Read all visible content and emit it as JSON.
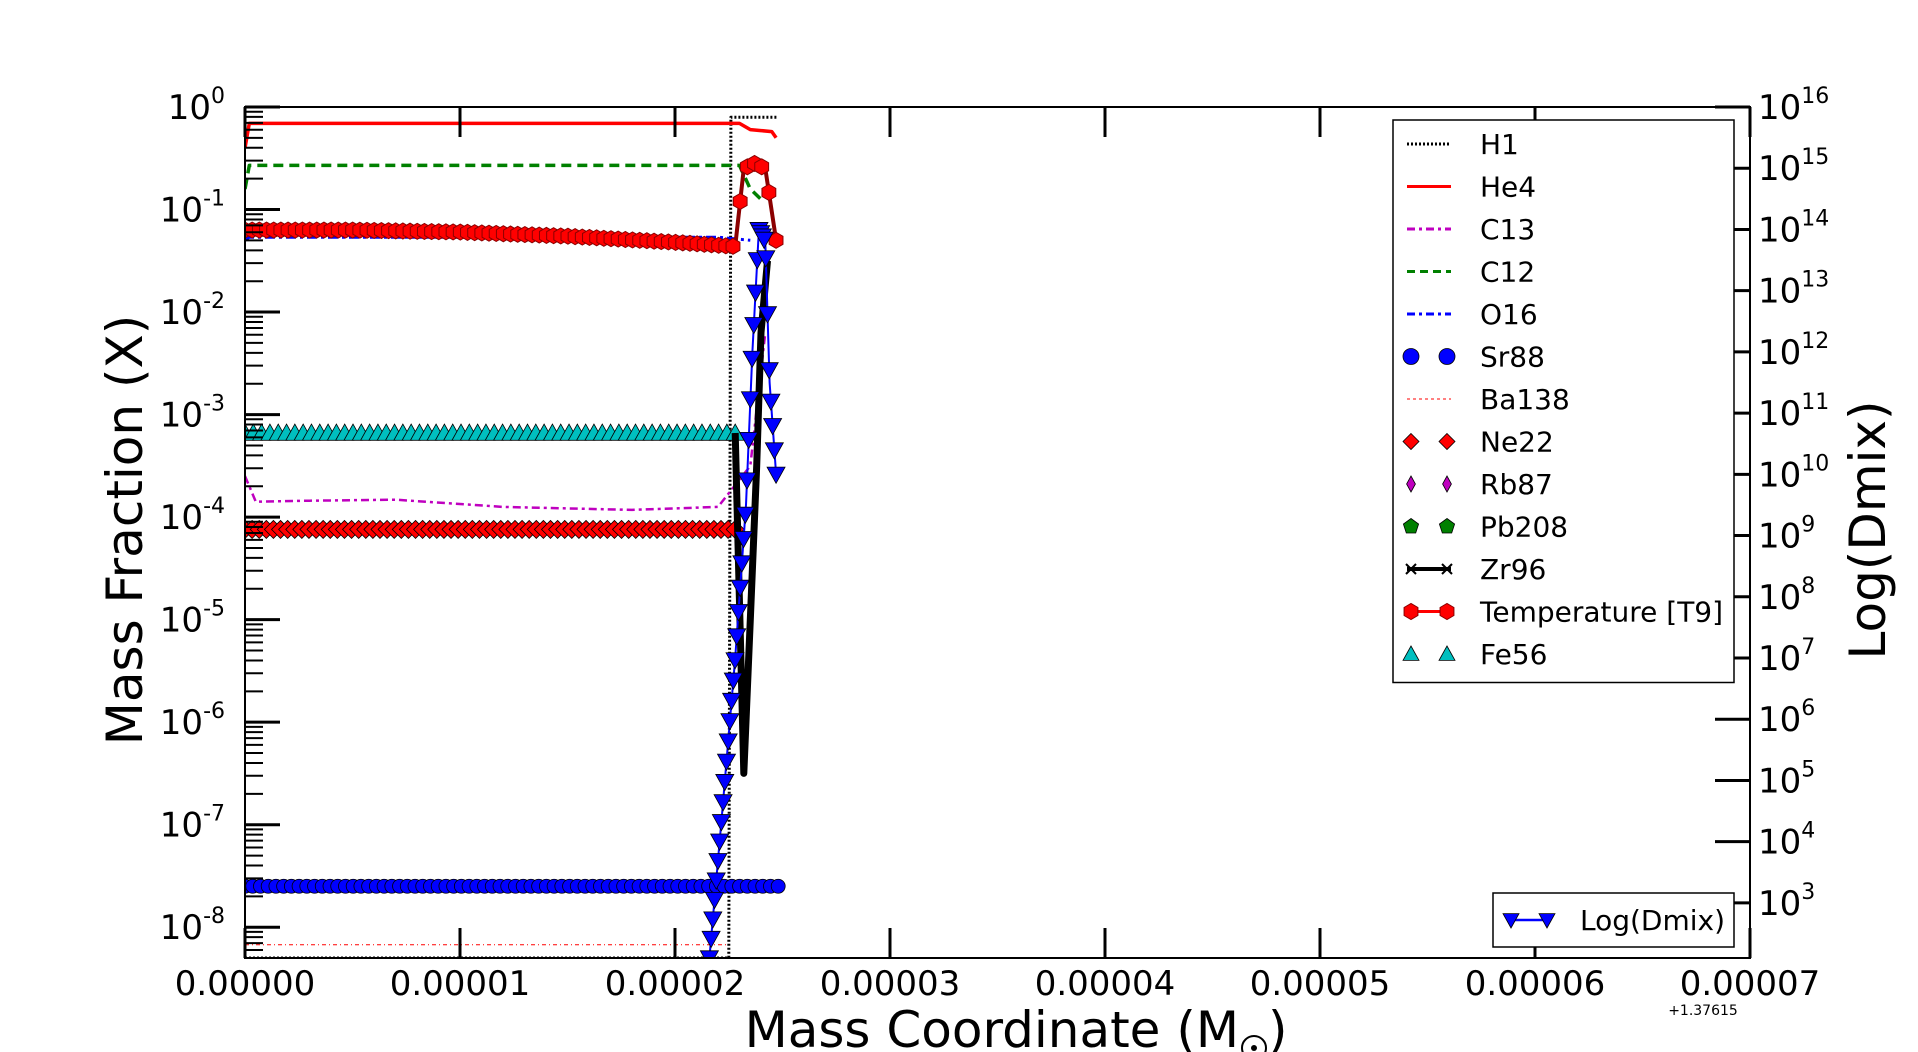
{
  "chart_data": {
    "type": "line",
    "x_offset_label": "+1.37615",
    "xlabel": "Mass Coordinate (M",
    "xlabel_suffix": ")",
    "ylabel_left": "Mass Fraction (X)",
    "ylabel_right": "Log(Dmix)",
    "xlim": [
      0.0,
      7e-05
    ],
    "ylim_left_log10": [
      -8.3,
      0
    ],
    "ylim_right_log10": [
      2.1,
      16
    ],
    "x_ticks": [
      "0.00000",
      "0.00001",
      "0.00002",
      "0.00003",
      "0.00004",
      "0.00005",
      "0.00006",
      "0.00007"
    ],
    "x_tick_values": [
      0,
      1e-05,
      2e-05,
      3e-05,
      4e-05,
      5e-05,
      6e-05,
      7e-05
    ],
    "left_ticks": [
      {
        "base": "10",
        "exp": "0",
        "v": 0
      },
      {
        "base": "10",
        "exp": "-1",
        "v": -1
      },
      {
        "base": "10",
        "exp": "-2",
        "v": -2
      },
      {
        "base": "10",
        "exp": "-3",
        "v": -3
      },
      {
        "base": "10",
        "exp": "-4",
        "v": -4
      },
      {
        "base": "10",
        "exp": "-5",
        "v": -5
      },
      {
        "base": "10",
        "exp": "-6",
        "v": -6
      },
      {
        "base": "10",
        "exp": "-7",
        "v": -7
      },
      {
        "base": "10",
        "exp": "-8",
        "v": -8
      }
    ],
    "right_ticks": [
      {
        "base": "10",
        "exp": "16",
        "v": 16
      },
      {
        "base": "10",
        "exp": "15",
        "v": 15
      },
      {
        "base": "10",
        "exp": "14",
        "v": 14
      },
      {
        "base": "10",
        "exp": "13",
        "v": 13
      },
      {
        "base": "10",
        "exp": "12",
        "v": 12
      },
      {
        "base": "10",
        "exp": "11",
        "v": 11
      },
      {
        "base": "10",
        "exp": "10",
        "v": 10
      },
      {
        "base": "10",
        "exp": "9",
        "v": 9
      },
      {
        "base": "10",
        "exp": "8",
        "v": 8
      },
      {
        "base": "10",
        "exp": "7",
        "v": 7
      },
      {
        "base": "10",
        "exp": "6",
        "v": 6
      },
      {
        "base": "10",
        "exp": "5",
        "v": 5
      },
      {
        "base": "10",
        "exp": "4",
        "v": 4
      },
      {
        "base": "10",
        "exp": "3",
        "v": 3
      }
    ],
    "legend_main": [
      {
        "name": "H1",
        "color": "#000000",
        "style": "dotted",
        "marker": "none"
      },
      {
        "name": "He4",
        "color": "#ff0000",
        "style": "solid",
        "marker": "none"
      },
      {
        "name": "C13",
        "color": "#bf00bf",
        "style": "dashdot",
        "marker": "none"
      },
      {
        "name": "C12",
        "color": "#008000",
        "style": "dashed",
        "marker": "none"
      },
      {
        "name": "O16",
        "color": "#0000ff",
        "style": "dashdot",
        "marker": "none"
      },
      {
        "name": "Sr88",
        "color": "#0000ff",
        "style": "none",
        "marker": "circle"
      },
      {
        "name": "Ba138",
        "color": "#ff0000",
        "style": "dotted-thin",
        "marker": "none"
      },
      {
        "name": "Ne22",
        "color": "#ff0000",
        "style": "none",
        "marker": "diamond"
      },
      {
        "name": "Rb87",
        "color": "#bf00bf",
        "style": "none",
        "marker": "thin-diamond"
      },
      {
        "name": "Pb208",
        "color": "#008000",
        "style": "none",
        "marker": "pentagon"
      },
      {
        "name": "Zr96",
        "color": "#000000",
        "style": "solid",
        "marker": "x"
      },
      {
        "name": "Temperature [T9]",
        "color": "#ff0000",
        "style": "solid",
        "marker": "hexagon"
      },
      {
        "name": "Fe56",
        "color": "#00bfbf",
        "style": "none",
        "marker": "triangle-up"
      }
    ],
    "legend_right": {
      "name": "Log(Dmix)",
      "color": "#0000ff",
      "marker": "triangle-down"
    },
    "series": [
      {
        "name": "H1",
        "x": [
          0,
          2.25e-05,
          2.26e-05,
          2.48e-05
        ],
        "log10_y": [
          -8.3,
          -8.3,
          -0.1,
          -0.1
        ]
      },
      {
        "name": "He4",
        "x": [
          0,
          2e-07,
          1e-06,
          2.3e-05,
          2.35e-05,
          2.4e-05,
          2.45e-05,
          2.47e-05
        ],
        "log10_y": [
          -0.4,
          -0.16,
          -0.16,
          -0.16,
          -0.22,
          -0.23,
          -0.24,
          -0.3
        ]
      },
      {
        "name": "C12",
        "x": [
          0,
          2e-07,
          2.3e-05,
          2.35e-05,
          2.4e-05
        ],
        "log10_y": [
          -0.8,
          -0.57,
          -0.57,
          -0.8,
          -0.9
        ]
      },
      {
        "name": "O16",
        "x": [
          0,
          2e-07,
          1e-05,
          2.2e-05,
          2.35e-05
        ],
        "log10_y": [
          -1.3,
          -1.27,
          -1.27,
          -1.27,
          -1.3
        ]
      },
      {
        "name": "C13",
        "x": [
          0,
          5e-07,
          3e-06,
          7e-06,
          1.2e-05,
          1.8e-05,
          2.2e-05,
          2.35e-05,
          2.42e-05
        ],
        "log10_y": [
          -3.6,
          -3.85,
          -3.84,
          -3.83,
          -3.9,
          -3.93,
          -3.9,
          -3.5,
          -2.2
        ]
      },
      {
        "name": "Ba138",
        "x": [
          0,
          2.25e-05
        ],
        "log10_y": [
          -8.17,
          -8.17
        ]
      },
      {
        "name": "Sr88",
        "x": [
          0,
          5e-06,
          1e-05,
          1.5e-05,
          2e-05,
          2.48e-05
        ],
        "log10_y": [
          -7.6,
          -7.6,
          -7.6,
          -7.6,
          -7.6,
          -7.6
        ]
      },
      {
        "name": "Fe56",
        "x": [
          0,
          5e-06,
          1e-05,
          1.5e-05,
          2e-05,
          2.28e-05
        ],
        "log10_y": [
          -3.18,
          -3.18,
          -3.18,
          -3.18,
          -3.18,
          -3.18
        ]
      },
      {
        "name": "Ne22",
        "x": [
          0,
          5e-06,
          1e-05,
          1.5e-05,
          2e-05,
          2.28e-05
        ],
        "log10_y": [
          -4.12,
          -4.12,
          -4.12,
          -4.12,
          -4.12,
          -4.12
        ]
      },
      {
        "name": "Temperature [T9]",
        "x": [
          0,
          5e-06,
          1e-05,
          1.5e-05,
          2e-05,
          2.28e-05,
          2.32e-05,
          2.37e-05,
          2.42e-05,
          2.47e-05
        ],
        "log10_y": [
          -1.2,
          -1.2,
          -1.22,
          -1.26,
          -1.32,
          -1.36,
          -0.6,
          -0.55,
          -0.6,
          -1.3
        ]
      },
      {
        "name": "Zr96",
        "x": [
          2.28e-05,
          2.32e-05,
          2.35e-05,
          2.38e-05,
          2.4e-05,
          2.43e-05
        ],
        "log10_y": [
          -3.18,
          -6.5,
          -5.0,
          -3.5,
          -2.2,
          -1.5
        ]
      },
      {
        "name": "Log(Dmix)",
        "x": [
          2.16e-05,
          2.22e-05,
          2.28e-05,
          2.33e-05,
          2.36e-05,
          2.39e-05,
          2.42e-05,
          2.44e-05,
          2.47e-05
        ],
        "log10_y_right": [
          2.1,
          4.5,
          7.0,
          9.5,
          12.0,
          14.0,
          13.8,
          11.5,
          10.0
        ]
      }
    ]
  }
}
